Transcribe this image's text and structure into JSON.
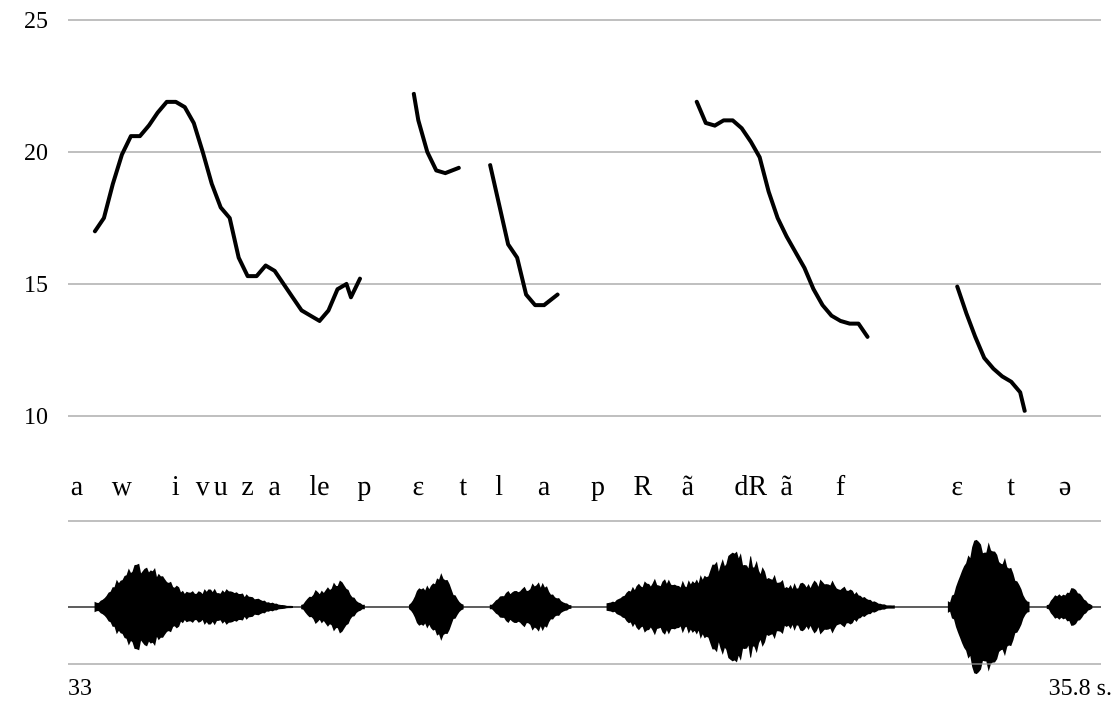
{
  "chart_data": {
    "type": "line",
    "title": "",
    "xlabel": "",
    "ylabel": "",
    "ylim": [
      10,
      25
    ],
    "yticks": [
      10,
      15,
      20,
      25
    ],
    "grid": true,
    "time_axis": {
      "start_label": "33",
      "end_label": "35.8 s.",
      "range": [
        33.0,
        35.8
      ]
    },
    "segments": [
      {
        "label": "a",
        "t": 33.01
      },
      {
        "label": "w",
        "t": 33.06
      },
      {
        "label": "i",
        "t": 33.12
      },
      {
        "label": "v",
        "t": 33.15
      },
      {
        "label": "u",
        "t": 33.17
      },
      {
        "label": "z",
        "t": 33.2
      },
      {
        "label": "a",
        "t": 33.23
      },
      {
        "label": "le",
        "t": 33.28
      },
      {
        "label": "p",
        "t": 33.33
      },
      {
        "label": "ɛ",
        "t": 33.39
      },
      {
        "label": "t",
        "t": 33.44
      },
      {
        "label": "l",
        "t": 33.48
      },
      {
        "label": "a",
        "t": 33.53
      },
      {
        "label": "p",
        "t": 33.59
      },
      {
        "label": "R",
        "t": 33.64
      },
      {
        "label": "ã",
        "t": 33.69
      },
      {
        "label": "dR",
        "t": 33.76
      },
      {
        "label": "ã",
        "t": 33.8
      },
      {
        "label": "f",
        "t": 33.86
      },
      {
        "label": "ɛ",
        "t": 33.99
      },
      {
        "label": "t",
        "t": 34.05
      },
      {
        "label": "ə",
        "t": 34.11
      }
    ],
    "series": [
      {
        "points": [
          [
            33.03,
            17.0
          ],
          [
            33.04,
            17.5
          ],
          [
            33.05,
            18.8
          ],
          [
            33.06,
            19.9
          ],
          [
            33.07,
            20.6
          ],
          [
            33.08,
            20.6
          ],
          [
            33.09,
            21.0
          ],
          [
            33.1,
            21.5
          ],
          [
            33.11,
            21.9
          ],
          [
            33.12,
            21.9
          ],
          [
            33.13,
            21.7
          ],
          [
            33.14,
            21.1
          ],
          [
            33.15,
            20.0
          ],
          [
            33.16,
            18.8
          ],
          [
            33.17,
            17.9
          ],
          [
            33.18,
            17.5
          ],
          [
            33.19,
            16.0
          ],
          [
            33.2,
            15.3
          ],
          [
            33.21,
            15.3
          ],
          [
            33.22,
            15.7
          ],
          [
            33.23,
            15.5
          ],
          [
            33.24,
            15.0
          ],
          [
            33.25,
            14.5
          ],
          [
            33.26,
            14.0
          ],
          [
            33.27,
            13.8
          ],
          [
            33.28,
            13.6
          ],
          [
            33.29,
            14.0
          ],
          [
            33.3,
            14.8
          ],
          [
            33.31,
            15.0
          ],
          [
            33.315,
            14.5
          ],
          [
            33.325,
            15.2
          ]
        ]
      },
      {
        "points": [
          [
            33.385,
            22.2
          ],
          [
            33.39,
            21.2
          ],
          [
            33.4,
            20.0
          ],
          [
            33.41,
            19.3
          ],
          [
            33.42,
            19.2
          ],
          [
            33.435,
            19.4
          ]
        ]
      },
      {
        "points": [
          [
            33.47,
            19.5
          ],
          [
            33.48,
            18.0
          ],
          [
            33.49,
            16.5
          ],
          [
            33.5,
            16.0
          ],
          [
            33.51,
            14.6
          ],
          [
            33.52,
            14.2
          ],
          [
            33.53,
            14.2
          ],
          [
            33.545,
            14.6
          ]
        ]
      },
      {
        "points": [
          [
            33.7,
            21.9
          ],
          [
            33.71,
            21.1
          ],
          [
            33.72,
            21.0
          ],
          [
            33.73,
            21.2
          ],
          [
            33.74,
            21.2
          ],
          [
            33.75,
            20.9
          ],
          [
            33.76,
            20.4
          ],
          [
            33.77,
            19.8
          ],
          [
            33.78,
            18.5
          ],
          [
            33.79,
            17.5
          ],
          [
            33.8,
            16.8
          ],
          [
            33.81,
            16.2
          ],
          [
            33.82,
            15.6
          ],
          [
            33.83,
            14.8
          ],
          [
            33.84,
            14.2
          ],
          [
            33.85,
            13.8
          ],
          [
            33.86,
            13.6
          ],
          [
            33.87,
            13.5
          ],
          [
            33.88,
            13.5
          ],
          [
            33.89,
            13.0
          ]
        ]
      },
      {
        "points": [
          [
            33.99,
            14.9
          ],
          [
            34.0,
            13.9
          ],
          [
            34.01,
            13.0
          ],
          [
            34.02,
            12.2
          ],
          [
            34.03,
            11.8
          ],
          [
            34.04,
            11.5
          ],
          [
            34.05,
            11.3
          ],
          [
            34.06,
            10.9
          ],
          [
            34.065,
            10.2
          ]
        ]
      }
    ],
    "waveform": {
      "description": "speech waveform",
      "segments": [
        {
          "label": "burst 1",
          "start": 33.03,
          "end": 33.25,
          "amplitude": 0.9
        },
        {
          "label": "burst 2",
          "start": 33.26,
          "end": 33.33,
          "amplitude": 0.35
        },
        {
          "label": "burst 3",
          "start": 33.38,
          "end": 33.44,
          "amplitude": 0.45
        },
        {
          "label": "burst 4",
          "start": 33.47,
          "end": 33.56,
          "amplitude": 0.35
        },
        {
          "label": "burst 5",
          "start": 33.6,
          "end": 33.92,
          "amplitude": 0.85
        },
        {
          "label": "burst 6",
          "start": 33.98,
          "end": 34.07,
          "amplitude": 0.95
        },
        {
          "label": "burst 7",
          "start": 34.09,
          "end": 34.14,
          "amplitude": 0.28
        }
      ]
    },
    "colors": {
      "line": "#000000",
      "grid": "#9a9a9a",
      "wave": "#000000"
    }
  }
}
